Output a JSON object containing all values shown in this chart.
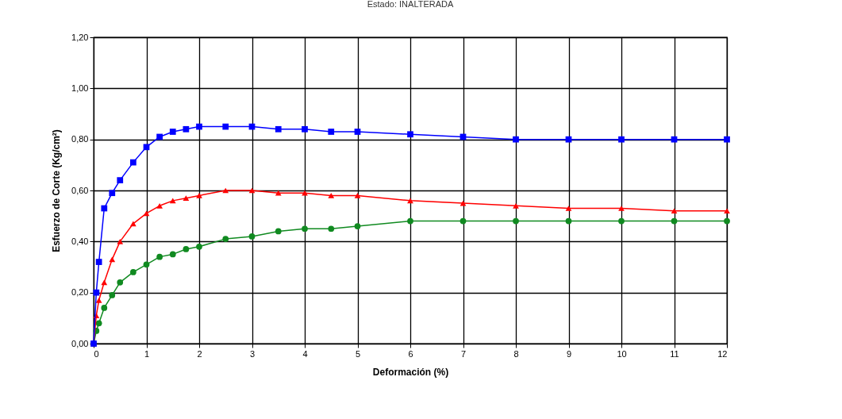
{
  "chart_data": {
    "type": "line",
    "title": "Estado: INALTERADA",
    "xlabel": "Deformación (%)",
    "ylabel": "Esfuerzo de Corte (Kg/cm²)",
    "xlim": [
      0,
      12
    ],
    "xticks": [
      0,
      1,
      2,
      3,
      4,
      5,
      6,
      7,
      8,
      9,
      10,
      11,
      12
    ],
    "ylim": [
      0,
      1.2
    ],
    "yticks": [
      {
        "value": 0,
        "label": "0,00"
      },
      {
        "value": 0.2,
        "label": "0,20"
      },
      {
        "value": 0.4,
        "label": "0,40"
      },
      {
        "value": 0.6,
        "label": "0,60"
      },
      {
        "value": 0.8,
        "label": "0,80"
      },
      {
        "value": 1,
        "label": "1,00"
      },
      {
        "value": 1.2,
        "label": "1,20"
      }
    ],
    "grid": true,
    "x": [
      0,
      0.05,
      0.1,
      0.2,
      0.35,
      0.5,
      0.75,
      1,
      1.25,
      1.5,
      1.75,
      2,
      2.5,
      3,
      3.5,
      4,
      4.5,
      5,
      6,
      7,
      8,
      9,
      10,
      11,
      12
    ],
    "series": [
      {
        "color": "#108a20",
        "marker": "circle",
        "values": [
          0,
          0.05,
          0.08,
          0.14,
          0.19,
          0.24,
          0.28,
          0.31,
          0.34,
          0.35,
          0.37,
          0.38,
          0.41,
          0.42,
          0.44,
          0.45,
          0.45,
          0.46,
          0.48,
          0.48,
          0.48,
          0.48,
          0.48,
          0.48,
          0.48
        ]
      },
      {
        "color": "#ff0000",
        "marker": "triangle",
        "values": [
          0,
          0.11,
          0.17,
          0.24,
          0.33,
          0.4,
          0.47,
          0.51,
          0.54,
          0.56,
          0.57,
          0.58,
          0.6,
          0.6,
          0.59,
          0.59,
          0.58,
          0.58,
          0.56,
          0.55,
          0.54,
          0.53,
          0.53,
          0.52,
          0.52
        ]
      },
      {
        "color": "#0000ff",
        "marker": "square",
        "values": [
          0,
          0.2,
          0.32,
          0.53,
          0.59,
          0.64,
          0.71,
          0.77,
          0.81,
          0.83,
          0.84,
          0.85,
          0.85,
          0.85,
          0.84,
          0.84,
          0.83,
          0.83,
          0.82,
          0.81,
          0.8,
          0.8,
          0.8,
          0.8,
          0.8
        ]
      }
    ]
  }
}
